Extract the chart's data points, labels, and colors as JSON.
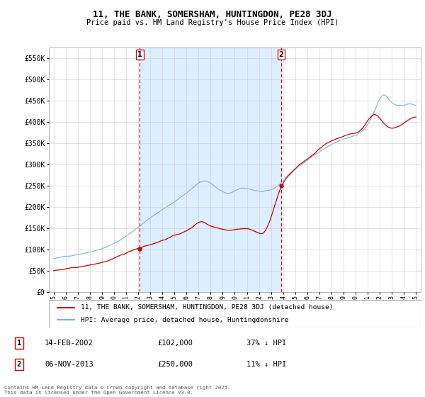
{
  "title": "11, THE BANK, SOMERSHAM, HUNTINGDON, PE28 3DJ",
  "subtitle": "Price paid vs. HM Land Registry's House Price Index (HPI)",
  "background_color": "#ffffff",
  "plot_bg_color": "#ffffff",
  "grid_color": "#cccccc",
  "shade_color": "#ddeeff",
  "ylim": [
    0,
    575000
  ],
  "yticks": [
    0,
    50000,
    100000,
    150000,
    200000,
    250000,
    300000,
    350000,
    400000,
    450000,
    500000,
    550000
  ],
  "ytick_labels": [
    "£0",
    "£50K",
    "£100K",
    "£150K",
    "£200K",
    "£250K",
    "£300K",
    "£350K",
    "£400K",
    "£450K",
    "£500K",
    "£550K"
  ],
  "hpi_color": "#7ab3d4",
  "house_color": "#cc0000",
  "dashed_line_color": "#cc0000",
  "sale1": {
    "date": "14-FEB-2002",
    "price": 102000,
    "pct": "37%",
    "label": "1",
    "x": 2002.12
  },
  "sale2": {
    "date": "06-NOV-2013",
    "price": 250000,
    "pct": "11%",
    "label": "2",
    "x": 2013.84
  },
  "footnote": "Contains HM Land Registry data © Crown copyright and database right 2025.\nThis data is licensed under the Open Government Licence v3.0.",
  "legend_house": "11, THE BANK, SOMERSHAM, HUNTINGDON, PE28 3DJ (detached house)",
  "legend_hpi": "HPI: Average price, detached house, Huntingdonshire"
}
